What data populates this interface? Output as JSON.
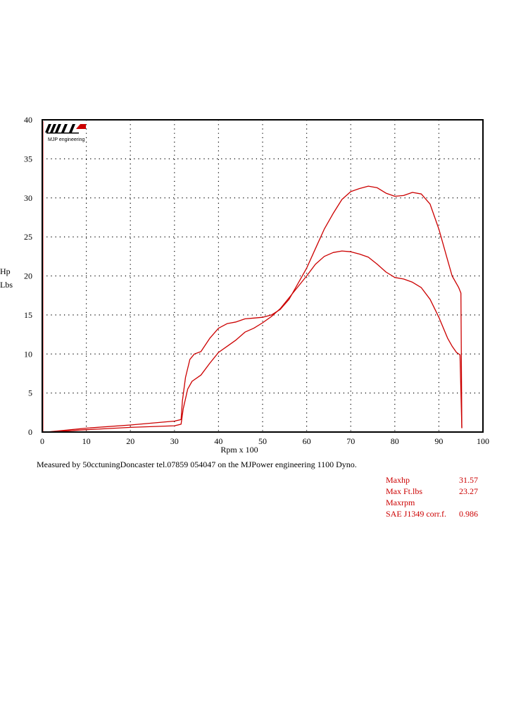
{
  "logo": {
    "text": "MJP engineering"
  },
  "chart_data": {
    "type": "line",
    "xlabel": "Rpm x 100",
    "ylabel_lines": [
      "Hp",
      "Lbs"
    ],
    "xlim": [
      0,
      100
    ],
    "ylim": [
      0,
      40
    ],
    "x_ticks": [
      "0",
      "10",
      "20",
      "30",
      "40",
      "50",
      "60",
      "70",
      "80",
      "90",
      "100"
    ],
    "y_ticks": [
      "0",
      "5",
      "10",
      "15",
      "20",
      "25",
      "30",
      "35",
      "40"
    ],
    "grid": true,
    "series": [
      {
        "color": "#cc0000",
        "points": [
          [
            1,
            0
          ],
          [
            10,
            0.5
          ],
          [
            20,
            0.9
          ],
          [
            30,
            1.4
          ],
          [
            31.5,
            1.6
          ],
          [
            31.8,
            4
          ],
          [
            32.5,
            7
          ],
          [
            33.5,
            9.3
          ],
          [
            34.5,
            10
          ],
          [
            36,
            10.3
          ],
          [
            38,
            12
          ],
          [
            40,
            13.3
          ],
          [
            42,
            13.9
          ],
          [
            44,
            14.1
          ],
          [
            46,
            14.5
          ],
          [
            48,
            14.6
          ],
          [
            50,
            14.7
          ],
          [
            52,
            15
          ],
          [
            54,
            15.7
          ],
          [
            56,
            17
          ],
          [
            58,
            19
          ],
          [
            60,
            21
          ],
          [
            62,
            23.5
          ],
          [
            64,
            26
          ],
          [
            66,
            28
          ],
          [
            68,
            29.8
          ],
          [
            70,
            30.8
          ],
          [
            72,
            31.2
          ],
          [
            74,
            31.5
          ],
          [
            76,
            31.3
          ],
          [
            78,
            30.6
          ],
          [
            80,
            30.2
          ],
          [
            82,
            30.3
          ],
          [
            84,
            30.7
          ],
          [
            86,
            30.5
          ],
          [
            88,
            29.2
          ],
          [
            90,
            26
          ],
          [
            92,
            22
          ],
          [
            93,
            20
          ],
          [
            94.5,
            18.5
          ],
          [
            95,
            17.8
          ],
          [
            95.2,
            0.5
          ]
        ]
      },
      {
        "color": "#cc0000",
        "points": [
          [
            1,
            0
          ],
          [
            10,
            0.3
          ],
          [
            20,
            0.6
          ],
          [
            30,
            0.8
          ],
          [
            31.5,
            1
          ],
          [
            32,
            3
          ],
          [
            33,
            5.5
          ],
          [
            34,
            6.5
          ],
          [
            36,
            7.3
          ],
          [
            38,
            8.8
          ],
          [
            40,
            10.2
          ],
          [
            42,
            11
          ],
          [
            44,
            11.8
          ],
          [
            46,
            12.8
          ],
          [
            48,
            13.3
          ],
          [
            50,
            14
          ],
          [
            52,
            14.8
          ],
          [
            54,
            15.8
          ],
          [
            56,
            17.2
          ],
          [
            58,
            18.6
          ],
          [
            60,
            20
          ],
          [
            62,
            21.5
          ],
          [
            64,
            22.5
          ],
          [
            66,
            23
          ],
          [
            68,
            23.2
          ],
          [
            70,
            23.1
          ],
          [
            72,
            22.8
          ],
          [
            74,
            22.4
          ],
          [
            76,
            21.5
          ],
          [
            78,
            20.5
          ],
          [
            80,
            19.8
          ],
          [
            82,
            19.6
          ],
          [
            84,
            19.2
          ],
          [
            86,
            18.5
          ],
          [
            88,
            17
          ],
          [
            90,
            14.7
          ],
          [
            92,
            12
          ],
          [
            93,
            11
          ],
          [
            94,
            10.2
          ],
          [
            94.8,
            9.9
          ],
          [
            95.2,
            0.5
          ]
        ]
      },
      {
        "color": "#cc0000",
        "points": [
          [
            1,
            0
          ],
          [
            95.2,
            0
          ]
        ]
      }
    ]
  },
  "footer": {
    "measured_by": "Measured by 50cctuningDoncaster tel.07859 054047 on the MJPower engineering 1100 Dyno."
  },
  "stats": [
    {
      "label": "Maxhp",
      "value": "31.57"
    },
    {
      "label": "Max Ft.lbs",
      "value": "23.27"
    },
    {
      "label": "Maxrpm",
      "value": ""
    },
    {
      "label": "SAE J1349 corr.f.",
      "value": "0.986"
    }
  ]
}
